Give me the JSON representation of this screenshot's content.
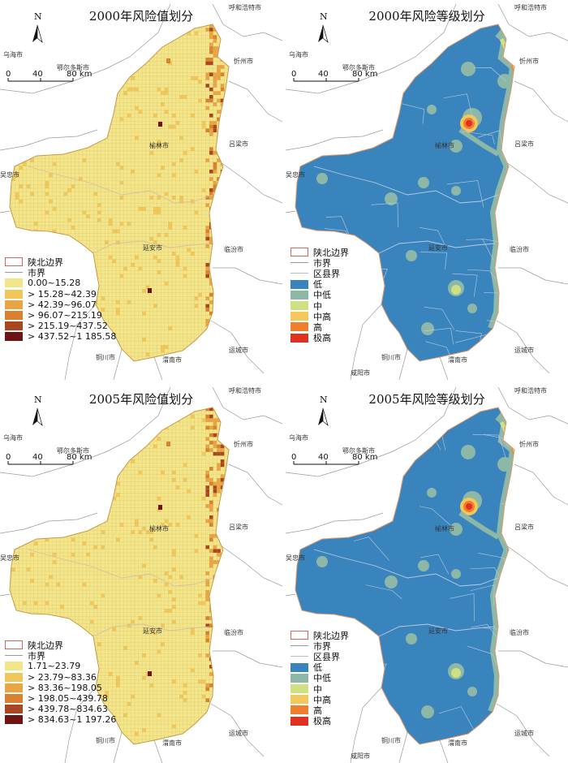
{
  "north_label": "N",
  "scale": {
    "ticks": [
      "0",
      "40",
      "80 km"
    ]
  },
  "panels": [
    {
      "id": "p2000v",
      "title": "2000年风险值划分",
      "kind": "value",
      "legend": [
        {
          "label": "陕北边界",
          "type": "boundary"
        },
        {
          "label": "市界",
          "type": "line"
        },
        {
          "label": "0.00~15.28",
          "color": "#f3e58a"
        },
        {
          "label": "> 15.28~42.39",
          "color": "#f0c75a"
        },
        {
          "label": "> 42.39~96.07",
          "color": "#e9a443"
        },
        {
          "label": "> 96.07~215.19",
          "color": "#d9812f"
        },
        {
          "label": "> 215.19~437.52",
          "color": "#a8461f"
        },
        {
          "label": "> 437.52~1 185.58",
          "color": "#6e1414"
        }
      ],
      "cities": {
        "tl": "乌海市",
        "tr": "呼和浩特市",
        "ordos": "鄂尔多斯市",
        "xinzhou": "忻州市",
        "yulin": "榆林市",
        "luliang": "吕梁市",
        "yanan": "延安市",
        "linfen": "临汾市",
        "yuncheng": "运城市",
        "tongchuan": "铜川市",
        "weinan": "渭南市",
        "wuzhong": "吴忠市"
      }
    },
    {
      "id": "p2000r",
      "title": "2000年风险等级划分",
      "kind": "risk",
      "legend": [
        {
          "label": "陕北边界",
          "type": "boundary"
        },
        {
          "label": "市界",
          "type": "line"
        },
        {
          "label": "区县界",
          "type": "line"
        },
        {
          "label": "低",
          "color": "#3a84be"
        },
        {
          "label": "中低",
          "color": "#8db7a6"
        },
        {
          "label": "中",
          "color": "#cfe083"
        },
        {
          "label": "中高",
          "color": "#f2c85b"
        },
        {
          "label": "高",
          "color": "#ef7f2f"
        },
        {
          "label": "极高",
          "color": "#e0301f"
        }
      ],
      "cities": {
        "tl": "乌海市",
        "tr": "呼和浩特市",
        "ordos": "鄂尔多斯市",
        "xinzhou": "忻州市",
        "yulin": "榆林市",
        "luliang": "吕梁市",
        "yanan": "延安市",
        "linfen": "临汾市",
        "yuncheng": "运城市",
        "tongchuan": "铜川市",
        "weinan": "渭南市",
        "xianyang": "咸阳市",
        "wuzhong": "吴忠市"
      }
    },
    {
      "id": "p2005v",
      "title": "2005年风险值划分",
      "kind": "value",
      "legend": [
        {
          "label": "陕北边界",
          "type": "boundary"
        },
        {
          "label": "市界",
          "type": "line"
        },
        {
          "label": "1.71~23.79",
          "color": "#f3e58a"
        },
        {
          "label": "> 23.79~83.36",
          "color": "#f0c75a"
        },
        {
          "label": "> 83.36~198.05",
          "color": "#e9a443"
        },
        {
          "label": "> 198.05~439.78",
          "color": "#d9812f"
        },
        {
          "label": "> 439.78~834.63",
          "color": "#a8461f"
        },
        {
          "label": "> 834.63~1 197.26",
          "color": "#6e1414"
        }
      ],
      "cities": {
        "tl": "乌海市",
        "tr": "呼和浩特市",
        "ordos": "鄂尔多斯市",
        "xinzhou": "忻州市",
        "yulin": "榆林市",
        "luliang": "吕梁市",
        "yanan": "延安市",
        "linfen": "临汾市",
        "yuncheng": "运城市",
        "tongchuan": "铜川市",
        "weinan": "渭南市",
        "wuzhong": "吴忠市"
      }
    },
    {
      "id": "p2005r",
      "title": "2005年风险等级划分",
      "kind": "risk",
      "legend": [
        {
          "label": "陕北边界",
          "type": "boundary"
        },
        {
          "label": "市界",
          "type": "line"
        },
        {
          "label": "区县界",
          "type": "line"
        },
        {
          "label": "低",
          "color": "#3a84be"
        },
        {
          "label": "中低",
          "color": "#8db7a6"
        },
        {
          "label": "中",
          "color": "#cfe083"
        },
        {
          "label": "中高",
          "color": "#f2c85b"
        },
        {
          "label": "高",
          "color": "#ef7f2f"
        },
        {
          "label": "极高",
          "color": "#e0301f"
        }
      ],
      "cities": {
        "tl": "乌海市",
        "tr": "呼和浩特市",
        "ordos": "鄂尔多斯市",
        "xinzhou": "忻州市",
        "yulin": "榆林市",
        "luliang": "吕梁市",
        "yanan": "延安市",
        "linfen": "临汾市",
        "yuncheng": "运城市",
        "tongchuan": "铜川市",
        "weinan": "渭南市",
        "xianyang": "咸阳市",
        "wuzhong": "吴忠市"
      }
    }
  ]
}
